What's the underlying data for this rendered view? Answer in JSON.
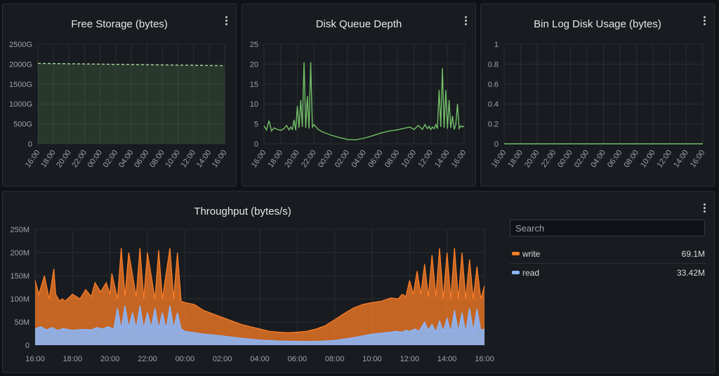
{
  "colors": {
    "green": "#73bf69",
    "orange": "#ff7f27",
    "blue": "#8ab8ff",
    "grid": "#2a2d33"
  },
  "panels": {
    "free_storage": {
      "title": "Free Storage (bytes)"
    },
    "disk_queue": {
      "title": "Disk Queue Depth"
    },
    "binlog": {
      "title": "Bin Log Disk Usage (bytes)"
    },
    "throughput": {
      "title": "Throughput (bytes/s)"
    }
  },
  "legend": {
    "search_placeholder": "Search",
    "items": [
      {
        "name": "write",
        "value": "69.1M",
        "color": "#ff7f27"
      },
      {
        "name": "read",
        "value": "33.42M",
        "color": "#8ab8ff"
      }
    ]
  },
  "chart_data": [
    {
      "type": "area",
      "title": "Free Storage (bytes)",
      "xticks": [
        "16:00",
        "18:00",
        "20:00",
        "22:00",
        "00:00",
        "02:00",
        "04:00",
        "06:00",
        "08:00",
        "10:00",
        "12:00",
        "14:00",
        "16:00"
      ],
      "ytick_labels": [
        "0",
        "500G",
        "1000G",
        "1500G",
        "2000G",
        "2500G"
      ],
      "ylim": [
        0,
        2500
      ],
      "y_unit": "G",
      "series": [
        {
          "x": [
            0,
            24
          ],
          "values": [
            2020,
            1960
          ]
        }
      ]
    },
    {
      "type": "line",
      "title": "Disk Queue Depth",
      "xticks": [
        "16:00",
        "18:00",
        "20:00",
        "22:00",
        "00:00",
        "02:00",
        "04:00",
        "06:00",
        "08:00",
        "10:00",
        "12:00",
        "14:00",
        "16:00"
      ],
      "ytick_labels": [
        "0",
        "5",
        "10",
        "15",
        "20",
        "25"
      ],
      "ylim": [
        0,
        25
      ],
      "series": [
        {
          "x": [
            0,
            0.3,
            0.6,
            0.9,
            1.2,
            1.6,
            2.0,
            2.4,
            2.7,
            3.0,
            3.2,
            3.4,
            3.6,
            3.8,
            4.0,
            4.2,
            4.4,
            4.6,
            4.8,
            5.0,
            5.2,
            5.4,
            5.6,
            5.8,
            6.0,
            6.5,
            7,
            8,
            9,
            10,
            11,
            12,
            13,
            14,
            15,
            16,
            17,
            17.5,
            18,
            18.5,
            19,
            19.3,
            19.6,
            19.8,
            20.0,
            20.2,
            20.4,
            20.6,
            20.8,
            21.0,
            21.2,
            21.4,
            21.6,
            21.8,
            22.0,
            22.2,
            22.4,
            22.6,
            22.8,
            23.0,
            23.2,
            23.4,
            23.6,
            23.8,
            24.0
          ],
          "values": [
            4.5,
            3.5,
            5.8,
            3.2,
            4.0,
            3.6,
            3.4,
            3.8,
            4.6,
            3.5,
            4.2,
            3.6,
            6.0,
            3.4,
            9.5,
            4.0,
            11.0,
            4.2,
            20.5,
            4.0,
            12.0,
            3.8,
            20.5,
            4.2,
            4.8,
            3.6,
            3.0,
            2.2,
            1.6,
            1.1,
            1.0,
            1.4,
            2.0,
            2.7,
            3.2,
            3.5,
            4.0,
            4.2,
            3.6,
            4.6,
            3.6,
            4.8,
            3.8,
            4.4,
            3.6,
            4.2,
            3.8,
            4.8,
            3.8,
            13.5,
            4.2,
            19.0,
            4.0,
            13.5,
            3.8,
            11.0,
            4.0,
            7.0,
            3.6,
            4.8,
            10.0,
            3.8,
            4.5,
            4.2,
            4.5
          ]
        }
      ]
    },
    {
      "type": "line",
      "title": "Bin Log Disk Usage (bytes)",
      "xticks": [
        "16:00",
        "18:00",
        "20:00",
        "22:00",
        "00:00",
        "02:00",
        "04:00",
        "06:00",
        "08:00",
        "10:00",
        "12:00",
        "14:00",
        "16:00"
      ],
      "ytick_labels": [
        "0",
        "0.2",
        "0.4",
        "0.6",
        "0.8",
        "1"
      ],
      "ylim": [
        0,
        1
      ],
      "series": [
        {
          "x": [
            0,
            24
          ],
          "values": [
            0,
            0
          ]
        }
      ]
    },
    {
      "type": "area",
      "title": "Throughput (bytes/s)",
      "xticks": [
        "16:00",
        "18:00",
        "20:00",
        "22:00",
        "00:00",
        "02:00",
        "04:00",
        "06:00",
        "08:00",
        "10:00",
        "12:00",
        "14:00",
        "16:00"
      ],
      "ytick_labels": [
        "0",
        "50M",
        "100M",
        "150M",
        "200M",
        "250M"
      ],
      "ylim": [
        0,
        250
      ],
      "y_unit": "M",
      "series": [
        {
          "name": "write",
          "x": [
            0,
            0.2,
            0.5,
            0.75,
            1.0,
            1.1,
            1.3,
            1.45,
            1.6,
            2.0,
            2.4,
            2.7,
            3.0,
            3.2,
            3.5,
            3.8,
            4.0,
            4.1,
            4.4,
            4.6,
            4.8,
            5.0,
            5.4,
            5.6,
            5.8,
            6.0,
            6.4,
            6.6,
            6.8,
            7.2,
            7.4,
            7.6,
            7.8,
            8,
            8.5,
            9,
            10,
            11,
            12,
            12.5,
            13,
            13.5,
            14,
            14.5,
            15,
            15.5,
            16,
            16.5,
            17,
            17.5,
            18,
            18.5,
            19,
            19.4,
            19.6,
            19.8,
            20.0,
            20.2,
            20.4,
            20.6,
            20.8,
            21.0,
            21.2,
            21.4,
            21.6,
            21.8,
            22.0,
            22.2,
            22.4,
            22.6,
            22.8,
            23.0,
            23.2,
            23.4,
            23.6,
            23.8,
            24.0
          ],
          "values": [
            140,
            110,
            150,
            100,
            165,
            110,
            95,
            100,
            95,
            110,
            100,
            120,
            105,
            135,
            115,
            135,
            110,
            155,
            100,
            210,
            105,
            200,
            105,
            210,
            100,
            200,
            100,
            205,
            100,
            210,
            100,
            200,
            95,
            92,
            88,
            75,
            60,
            45,
            35,
            30,
            28,
            27,
            28,
            30,
            35,
            42,
            55,
            68,
            80,
            88,
            92,
            95,
            102,
            100,
            110,
            105,
            140,
            110,
            160,
            110,
            175,
            105,
            195,
            105,
            210,
            100,
            200,
            100,
            210,
            100,
            200,
            100,
            185,
            100,
            170,
            100,
            128
          ]
        },
        {
          "name": "read",
          "x": [
            0,
            0.3,
            0.6,
            0.9,
            1.2,
            1.5,
            2.0,
            2.5,
            3.0,
            3.3,
            3.6,
            3.9,
            4.0,
            4.2,
            4.4,
            4.6,
            4.8,
            5.0,
            5.2,
            5.4,
            5.6,
            5.8,
            6.0,
            6.2,
            6.4,
            6.6,
            6.8,
            7.0,
            7.2,
            7.4,
            7.6,
            7.8,
            8,
            9,
            10,
            11,
            12,
            13,
            14,
            15,
            16,
            17,
            18,
            19,
            19.3,
            19.6,
            19.8,
            20.0,
            20.3,
            20.5,
            20.8,
            21.0,
            21.2,
            21.4,
            21.6,
            21.8,
            22.0,
            22.2,
            22.4,
            22.6,
            22.8,
            23.0,
            23.2,
            23.4,
            23.6,
            23.8,
            24.0
          ],
          "values": [
            35,
            40,
            33,
            38,
            32,
            36,
            32,
            34,
            33,
            38,
            35,
            40,
            38,
            35,
            80,
            35,
            85,
            38,
            70,
            36,
            85,
            35,
            70,
            38,
            80,
            36,
            70,
            35,
            85,
            36,
            70,
            35,
            30,
            24,
            20,
            15,
            11,
            9,
            8,
            8,
            10,
            16,
            24,
            28,
            30,
            28,
            32,
            30,
            35,
            30,
            50,
            32,
            45,
            28,
            52,
            30,
            58,
            28,
            75,
            30,
            70,
            28,
            80,
            30,
            78,
            32,
            35
          ]
        }
      ]
    }
  ]
}
